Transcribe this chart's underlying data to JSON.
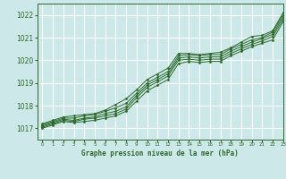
{
  "title": "Graphe pression niveau de la mer (hPa)",
  "bg_color": "#cde8e8",
  "grid_color": "#ffffff",
  "line_color": "#2d6a2d",
  "xlim": [
    -0.5,
    23
  ],
  "ylim": [
    1016.5,
    1022.5
  ],
  "yticks": [
    1017,
    1018,
    1019,
    1020,
    1021,
    1022
  ],
  "xticks": [
    0,
    1,
    2,
    3,
    4,
    5,
    6,
    7,
    8,
    9,
    10,
    11,
    12,
    13,
    14,
    15,
    16,
    17,
    18,
    19,
    20,
    21,
    22,
    23
  ],
  "series": [
    [
      1017.2,
      1017.35,
      1017.5,
      1017.55,
      1017.6,
      1017.65,
      1017.8,
      1018.05,
      1018.3,
      1018.7,
      1019.15,
      1019.4,
      1019.65,
      1020.3,
      1020.3,
      1020.25,
      1020.3,
      1020.35,
      1020.55,
      1020.8,
      1021.05,
      1021.1,
      1021.3,
      1022.1
    ],
    [
      1017.15,
      1017.3,
      1017.45,
      1017.45,
      1017.55,
      1017.6,
      1017.75,
      1017.9,
      1018.1,
      1018.55,
      1019.0,
      1019.25,
      1019.5,
      1020.2,
      1020.25,
      1020.2,
      1020.25,
      1020.25,
      1020.5,
      1020.7,
      1020.9,
      1021.0,
      1021.25,
      1022.0
    ],
    [
      1017.1,
      1017.25,
      1017.4,
      1017.35,
      1017.45,
      1017.5,
      1017.65,
      1017.75,
      1017.95,
      1018.45,
      1018.9,
      1019.15,
      1019.4,
      1020.1,
      1020.15,
      1020.1,
      1020.15,
      1020.15,
      1020.4,
      1020.6,
      1020.8,
      1020.95,
      1021.15,
      1021.9
    ],
    [
      1017.05,
      1017.2,
      1017.35,
      1017.3,
      1017.4,
      1017.45,
      1017.55,
      1017.65,
      1017.85,
      1018.35,
      1018.8,
      1019.05,
      1019.3,
      1020.0,
      1020.05,
      1020.0,
      1020.05,
      1020.05,
      1020.3,
      1020.5,
      1020.7,
      1020.85,
      1021.05,
      1021.8
    ],
    [
      1017.0,
      1017.15,
      1017.3,
      1017.25,
      1017.3,
      1017.35,
      1017.45,
      1017.55,
      1017.75,
      1018.2,
      1018.65,
      1018.9,
      1019.15,
      1019.85,
      1019.95,
      1019.9,
      1019.95,
      1019.95,
      1020.2,
      1020.4,
      1020.6,
      1020.75,
      1020.9,
      1021.7
    ]
  ]
}
